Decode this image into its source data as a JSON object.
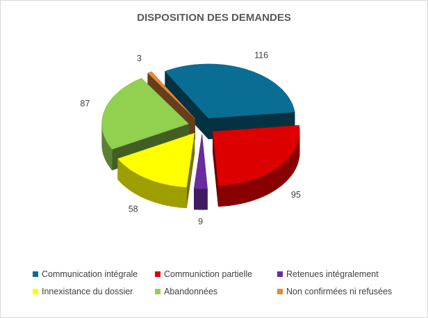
{
  "chart_data": {
    "type": "pie",
    "title": "DISPOSITION DES DEMANDES",
    "categories": [
      "Communication intégrale",
      "Communiction partielle",
      "Retenues intégralement",
      "Innexistance du dossier",
      "Abandonnées",
      "Non confirmées ni refusées"
    ],
    "values": [
      116,
      95,
      9,
      58,
      87,
      3
    ],
    "colors": [
      "#0a6e94",
      "#dd0000",
      "#6a2da0",
      "#ffff00",
      "#92d050",
      "#e58a3c"
    ],
    "exploded": true,
    "style": "3d",
    "legend": "bottom"
  }
}
